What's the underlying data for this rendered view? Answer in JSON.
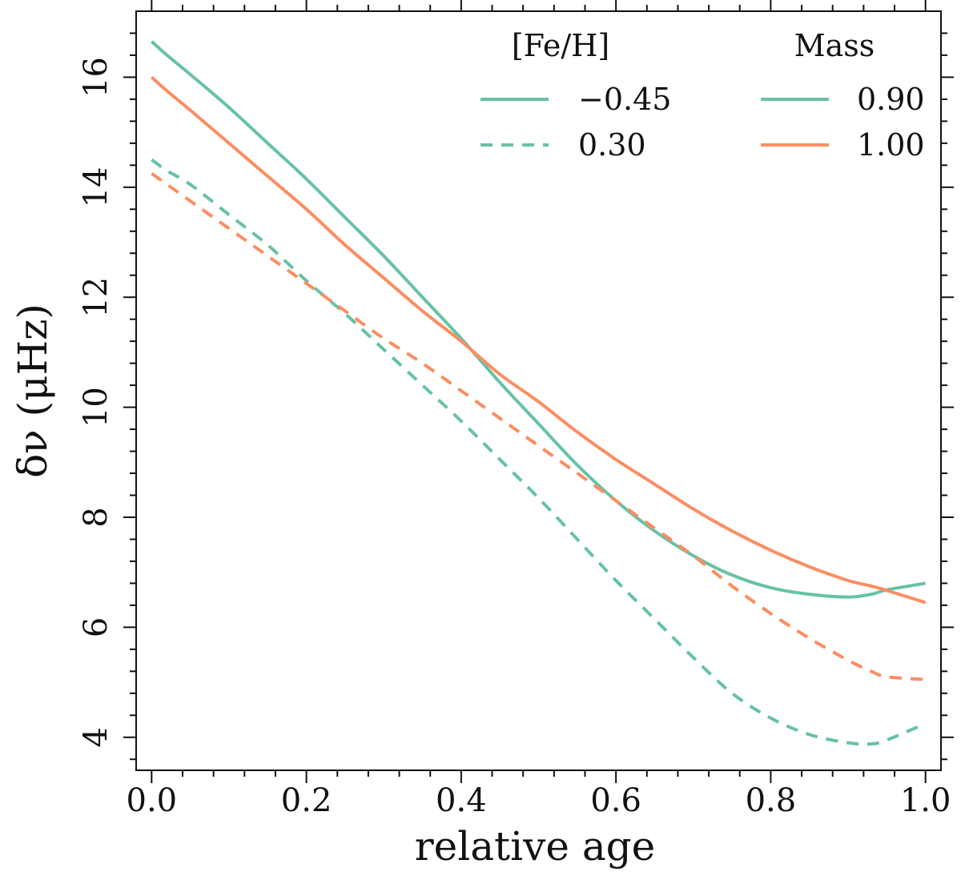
{
  "chart_data": {
    "type": "line",
    "xlabel": "relative age",
    "ylabel": "δν (μHz)",
    "xlim": [
      -0.02,
      1.02
    ],
    "ylim": [
      3.4,
      17.2
    ],
    "xticks": [
      0.0,
      0.2,
      0.4,
      0.6,
      0.8,
      1.0
    ],
    "xtick_labels": [
      "0.0",
      "0.2",
      "0.4",
      "0.6",
      "0.8",
      "1.0"
    ],
    "yticks": [
      4,
      6,
      8,
      10,
      12,
      14,
      16
    ],
    "ytick_labels": [
      "4",
      "6",
      "8",
      "10",
      "12",
      "14",
      "16"
    ],
    "x_minor_step": 0.04,
    "y_minor_step": 0.4,
    "colors": {
      "mass_0_90": "#66c2a5",
      "mass_1_00": "#fc8d62"
    },
    "legend": {
      "feh_title": "[Fe/H]",
      "mass_title": "Mass",
      "feh_entries": [
        {
          "label": "−0.45",
          "style": "solid"
        },
        {
          "label": "0.30",
          "style": "dashed"
        }
      ],
      "mass_entries": [
        {
          "label": "0.90",
          "color": "#66c2a5"
        },
        {
          "label": "1.00",
          "color": "#fc8d62"
        }
      ]
    },
    "x": [
      0.0,
      0.02,
      0.05,
      0.1,
      0.15,
      0.2,
      0.25,
      0.3,
      0.35,
      0.4,
      0.45,
      0.5,
      0.55,
      0.6,
      0.65,
      0.7,
      0.75,
      0.8,
      0.85,
      0.9,
      0.93,
      0.95,
      1.0
    ],
    "series": [
      {
        "name": "M=0.90, [Fe/H]=-0.45",
        "mass": "0.90",
        "feh": "-0.45",
        "style": "solid",
        "values": [
          16.65,
          16.4,
          16.05,
          15.45,
          14.8,
          14.15,
          13.45,
          12.75,
          12.0,
          11.25,
          10.45,
          9.7,
          8.95,
          8.3,
          7.75,
          7.3,
          6.95,
          6.72,
          6.6,
          6.55,
          6.6,
          6.68,
          6.8
        ]
      },
      {
        "name": "M=1.00, [Fe/H]=-0.45",
        "mass": "1.00",
        "feh": "-0.45",
        "style": "solid",
        "values": [
          16.0,
          15.75,
          15.4,
          14.8,
          14.2,
          13.6,
          12.95,
          12.35,
          11.75,
          11.2,
          10.6,
          10.1,
          9.55,
          9.05,
          8.6,
          8.15,
          7.75,
          7.4,
          7.1,
          6.85,
          6.75,
          6.67,
          6.45
        ]
      },
      {
        "name": "M=0.90, [Fe/H]=0.30",
        "mass": "0.90",
        "feh": "0.30",
        "style": "dashed",
        "values": [
          14.5,
          14.3,
          14.05,
          13.5,
          12.95,
          12.3,
          11.7,
          11.05,
          10.4,
          9.75,
          9.05,
          8.35,
          7.6,
          6.85,
          6.15,
          5.45,
          4.8,
          4.35,
          4.05,
          3.9,
          3.88,
          3.95,
          4.25
        ]
      },
      {
        "name": "M=1.00, [Fe/H]=0.30",
        "mass": "1.00",
        "feh": "0.30",
        "style": "dashed",
        "values": [
          14.25,
          14.05,
          13.75,
          13.25,
          12.75,
          12.25,
          11.75,
          11.25,
          10.8,
          10.3,
          9.8,
          9.3,
          8.8,
          8.3,
          7.8,
          7.3,
          6.75,
          6.25,
          5.8,
          5.4,
          5.2,
          5.1,
          5.05
        ]
      }
    ]
  }
}
